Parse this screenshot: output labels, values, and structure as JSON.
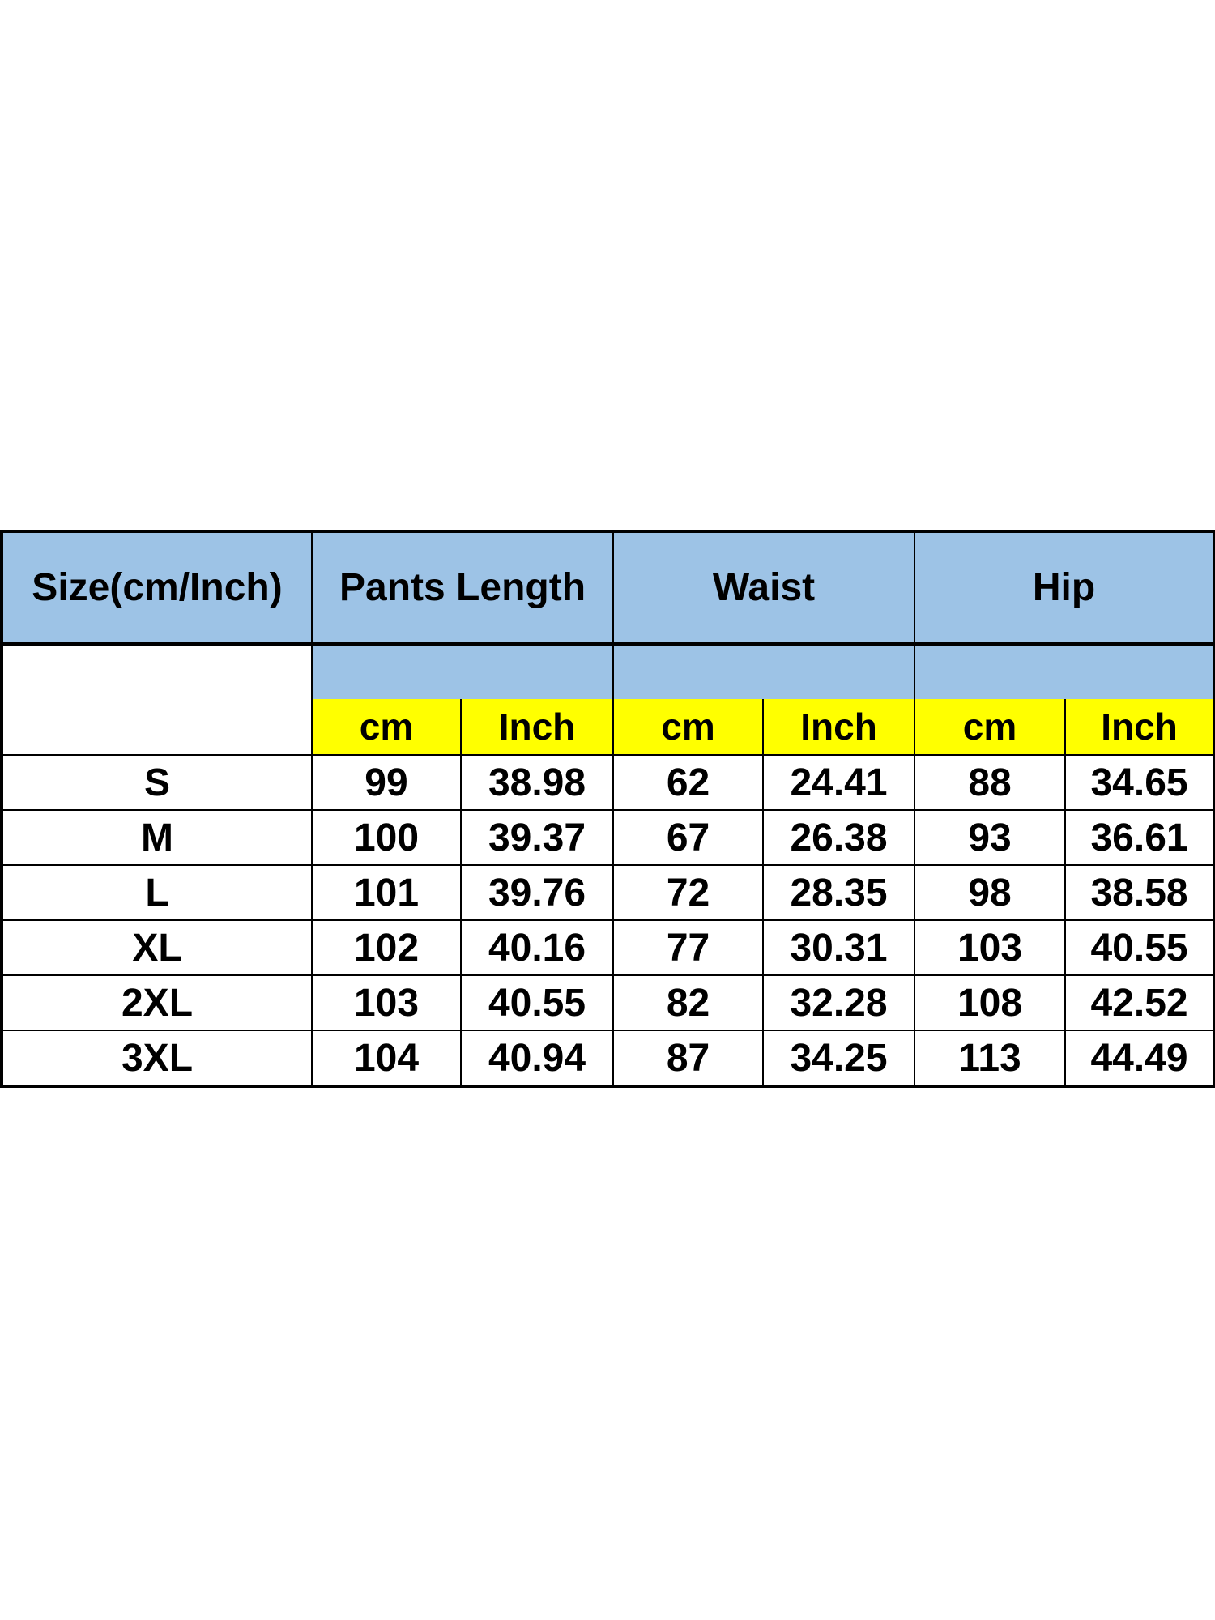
{
  "table": {
    "size_header": "Size(cm/Inch)",
    "groups": [
      "Pants Length",
      "Waist",
      "Hip"
    ],
    "units": [
      "cm",
      "Inch",
      "cm",
      "Inch",
      "cm",
      "Inch"
    ],
    "rows": [
      [
        "S",
        "99",
        "38.98",
        "62",
        "24.41",
        "88",
        "34.65"
      ],
      [
        "M",
        "100",
        "39.37",
        "67",
        "26.38",
        "93",
        "36.61"
      ],
      [
        "L",
        "101",
        "39.76",
        "72",
        "28.35",
        "98",
        "38.58"
      ],
      [
        "XL",
        "102",
        "40.16",
        "77",
        "30.31",
        "103",
        "40.55"
      ],
      [
        "2XL",
        "103",
        "40.55",
        "82",
        "32.28",
        "108",
        "42.52"
      ],
      [
        "3XL",
        "104",
        "40.94",
        "87",
        "34.25",
        "113",
        "44.49"
      ]
    ]
  },
  "colors": {
    "header_blue": "#9dc3e6",
    "unit_yellow": "#ffff00"
  }
}
